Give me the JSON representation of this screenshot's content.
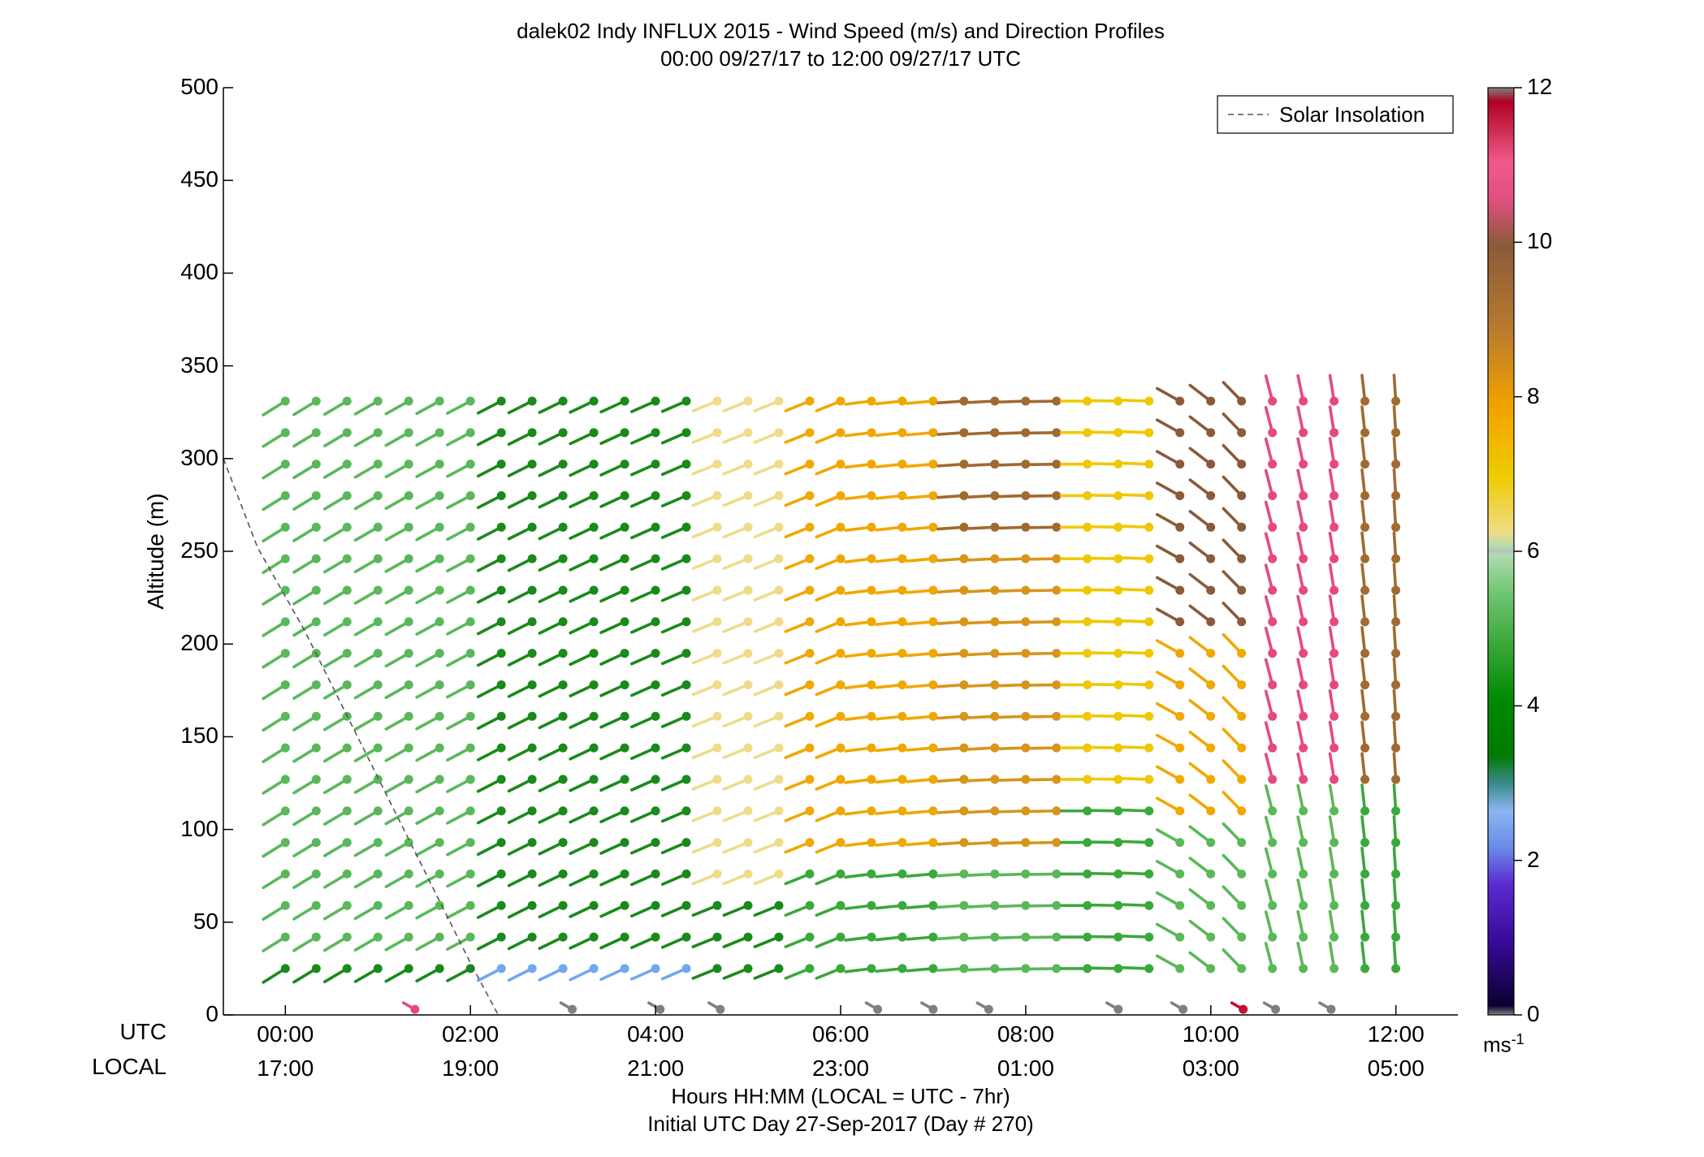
{
  "chart_data": {
    "type": "wind-barb-profile",
    "title": "dalek02 Indy INFLUX 2015 - Wind Speed (m/s) and Direction Profiles",
    "subtitle": "00:00 09/27/17 to 12:00 09/27/17  UTC",
    "ylabel": "Altitude (m)",
    "xlabel": "Hours HH:MM  (LOCAL = UTC - 7hr)",
    "xlabel2": "Initial UTC Day 27-Sep-2017 (Day # 270)",
    "ylim": [
      0,
      500
    ],
    "xlim_utc_hours": [
      -0.67,
      12.67
    ],
    "y_ticks": [
      "0",
      "50",
      "100",
      "150",
      "200",
      "250",
      "300",
      "350",
      "400",
      "450",
      "500"
    ],
    "utc_label": "UTC",
    "local_label": "LOCAL",
    "utc_ticks": [
      "00:00",
      "02:00",
      "04:00",
      "06:00",
      "08:00",
      "10:00",
      "12:00"
    ],
    "local_ticks": [
      "17:00",
      "19:00",
      "21:00",
      "23:00",
      "01:00",
      "03:00",
      "05:00"
    ],
    "legend": {
      "label": "Solar Insolation",
      "location": "top-right"
    },
    "colorbar": {
      "label": "ms",
      "label_exponent": "-1",
      "ticks": [
        "0",
        "2",
        "4",
        "6",
        "8",
        "10",
        "12"
      ],
      "range": [
        0,
        12
      ]
    },
    "solar_insolation_curve": [
      [
        -0.67,
        300
      ],
      [
        -0.3,
        252
      ],
      [
        0.2,
        208
      ],
      [
        0.7,
        158
      ],
      [
        1.2,
        108
      ],
      [
        1.6,
        68
      ],
      [
        2.0,
        28
      ],
      [
        2.3,
        0
      ]
    ],
    "altitudes": [
      25,
      42,
      59,
      76,
      93,
      110,
      127,
      144,
      161,
      178,
      195,
      212,
      229,
      246,
      263,
      280,
      297,
      314,
      331
    ],
    "time_step_hours": 0.3333,
    "n_times": 37,
    "speed_ms_description": "speed field by time (cols) and altitude (rows), derived from color; ~4.5 m/s light green early, ~3.5 m/s dark green near 02-05 UTC at mid levels, yellow/orange 7-9 m/s after 05 UTC, red/brown 9-11 m/s near 07-11 UTC",
    "surface_obs": [
      {
        "t": 1.4,
        "speed": 10.5
      },
      {
        "t": 3.1,
        "speed": 0
      },
      {
        "t": 4.05,
        "speed": 0
      },
      {
        "t": 4.7,
        "speed": 0
      },
      {
        "t": 6.4,
        "speed": 0
      },
      {
        "t": 7.0,
        "speed": 0
      },
      {
        "t": 7.6,
        "speed": 0
      },
      {
        "t": 9.0,
        "speed": 0
      },
      {
        "t": 9.7,
        "speed": 0
      },
      {
        "t": 10.35,
        "speed": 11.5
      },
      {
        "t": 10.7,
        "speed": 0
      },
      {
        "t": 11.3,
        "speed": 0
      }
    ]
  }
}
